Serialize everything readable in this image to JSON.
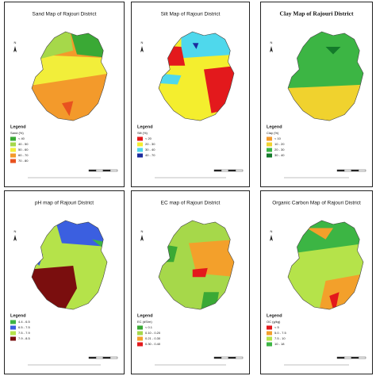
{
  "north_label": "N",
  "maps": [
    {
      "title": "Sand Map of Rajouri District",
      "legend_heading": "Legend",
      "legend_title": "Sand (%)",
      "items": [
        {
          "label": "< 40",
          "color": "#3aa935"
        },
        {
          "label": "40 - 50",
          "color": "#a6d84a"
        },
        {
          "label": "50 - 60",
          "color": "#f2ee3a"
        },
        {
          "label": "60 - 70",
          "color": "#f39a2b"
        },
        {
          "label": "70 - 80",
          "color": "#e8521f"
        }
      ]
    },
    {
      "title": "Silt Map of Rajouri District",
      "legend_heading": "Legend",
      "legend_title": "Silt (%)",
      "items": [
        {
          "label": "< 20",
          "color": "#e3191c"
        },
        {
          "label": "20 - 30",
          "color": "#f4ee2e"
        },
        {
          "label": "30 - 40",
          "color": "#4fd8ec"
        },
        {
          "label": "40 - 70",
          "color": "#1c2b9e"
        }
      ]
    },
    {
      "title": "Clay Map of Rajouri District",
      "legend_heading": "Legend",
      "legend_title": "Clay (%)",
      "items": [
        {
          "label": "< 10",
          "color": "#f39a2b"
        },
        {
          "label": "10 - 20",
          "color": "#f0d22e"
        },
        {
          "label": "20 - 30",
          "color": "#3cb544"
        },
        {
          "label": "30 - 40",
          "color": "#137a2a"
        }
      ]
    },
    {
      "title": "pH map of Rajouri District",
      "legend_heading": "Legend",
      "legend_title": "",
      "items": [
        {
          "label": "4.4 - 6.5",
          "color": "#3cb544"
        },
        {
          "label": "6.5 - 7.5",
          "color": "#3b5fe0"
        },
        {
          "label": "7.5 - 7.9",
          "color": "#b5e34a"
        },
        {
          "label": "7.9 - 8.5",
          "color": "#7a0e0e"
        }
      ]
    },
    {
      "title": "EC map of Rajouri District",
      "legend_heading": "Legend",
      "legend_title": "EC (dS/m)",
      "items": [
        {
          "label": "< 0.1",
          "color": "#3aa935"
        },
        {
          "label": "0.10 - 0.20",
          "color": "#a6d84a"
        },
        {
          "label": "0.21 - 0.30",
          "color": "#f3a02b"
        },
        {
          "label": "0.30 - 0.40",
          "color": "#e3191c"
        }
      ]
    },
    {
      "title": "Organic Carbon Map of Rajouri District",
      "legend_heading": "Legend",
      "legend_title": "OC (g/kg)",
      "items": [
        {
          "label": "< 5",
          "color": "#e3191c"
        },
        {
          "label": "5.0 - 7.5",
          "color": "#f3a02b"
        },
        {
          "label": "7.5 - 10",
          "color": "#b5e34a"
        },
        {
          "label": "10 - 18",
          "color": "#3cb544"
        }
      ]
    }
  ]
}
